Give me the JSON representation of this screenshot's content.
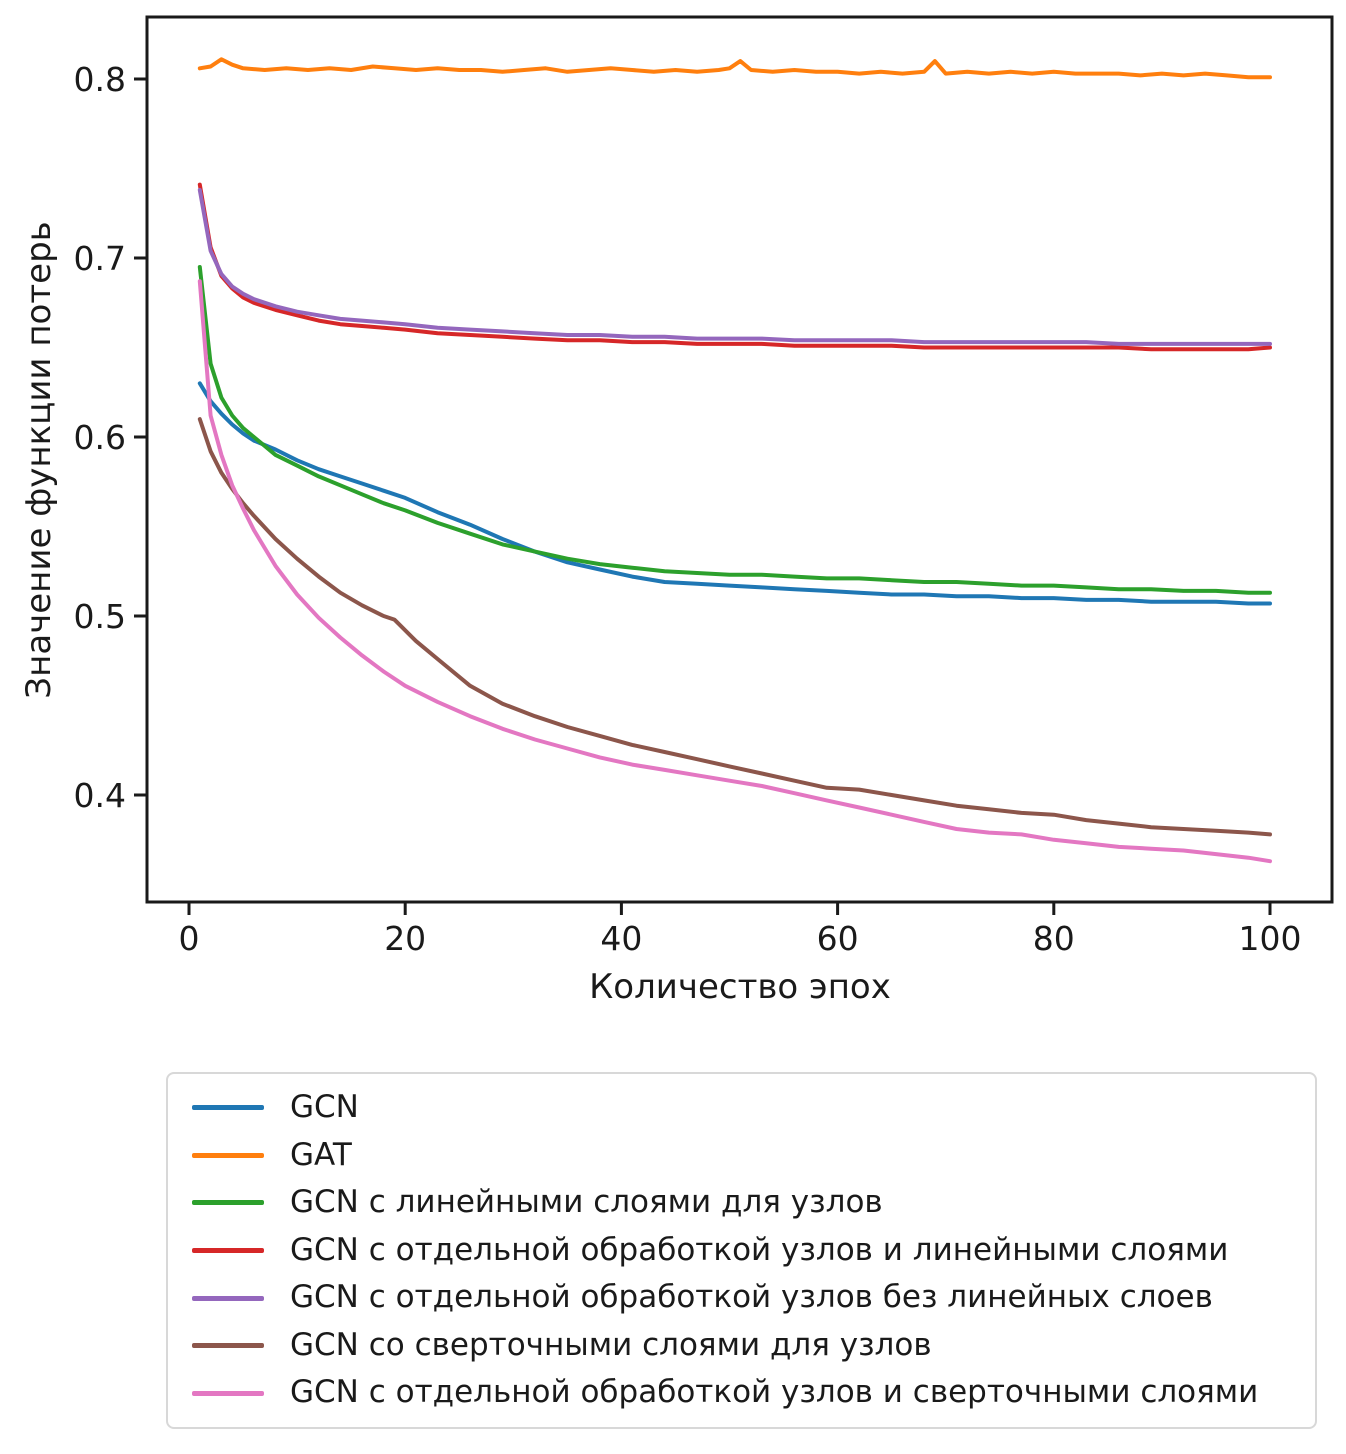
{
  "chart_data": {
    "type": "line",
    "title": "",
    "xlabel": "Количество эпох",
    "ylabel": "Значение функции потерь",
    "x_ticks": [
      "0",
      "20",
      "40",
      "60",
      "80",
      "100"
    ],
    "y_ticks": [
      "0.8",
      "0.7",
      "0.6",
      "0.5",
      "0.4"
    ],
    "xlim": [
      -4,
      106
    ],
    "ylim": [
      0.339,
      0.835
    ],
    "grid": false,
    "legend_position": "below-plot",
    "series": [
      {
        "name": "GCN",
        "color": "#1f77b4",
        "x": [
          1,
          2,
          3,
          4,
          5,
          6,
          8,
          10,
          12,
          14,
          16,
          18,
          20,
          23,
          26,
          29,
          32,
          35,
          38,
          41,
          44,
          47,
          50,
          53,
          56,
          59,
          62,
          65,
          68,
          71,
          74,
          77,
          80,
          83,
          86,
          89,
          92,
          95,
          98,
          100
        ],
        "y": [
          0.63,
          0.62,
          0.613,
          0.607,
          0.602,
          0.598,
          0.593,
          0.587,
          0.582,
          0.578,
          0.574,
          0.57,
          0.566,
          0.558,
          0.551,
          0.543,
          0.536,
          0.53,
          0.526,
          0.522,
          0.519,
          0.518,
          0.517,
          0.516,
          0.515,
          0.514,
          0.513,
          0.512,
          0.512,
          0.511,
          0.511,
          0.51,
          0.51,
          0.509,
          0.509,
          0.508,
          0.508,
          0.508,
          0.507,
          0.507
        ]
      },
      {
        "name": "GAT",
        "color": "#ff7f0e",
        "x": [
          1,
          2,
          3,
          4,
          5,
          7,
          9,
          11,
          13,
          15,
          17,
          19,
          21,
          23,
          25,
          27,
          29,
          31,
          33,
          35,
          37,
          39,
          41,
          43,
          45,
          47,
          49,
          50,
          51,
          52,
          54,
          56,
          58,
          60,
          62,
          64,
          66,
          68,
          69,
          70,
          72,
          74,
          76,
          78,
          80,
          82,
          84,
          86,
          88,
          90,
          92,
          94,
          96,
          98,
          100
        ],
        "y": [
          0.806,
          0.807,
          0.811,
          0.808,
          0.806,
          0.805,
          0.806,
          0.805,
          0.806,
          0.805,
          0.807,
          0.806,
          0.805,
          0.806,
          0.805,
          0.805,
          0.804,
          0.805,
          0.806,
          0.804,
          0.805,
          0.806,
          0.805,
          0.804,
          0.805,
          0.804,
          0.805,
          0.806,
          0.81,
          0.805,
          0.804,
          0.805,
          0.804,
          0.804,
          0.803,
          0.804,
          0.803,
          0.804,
          0.81,
          0.803,
          0.804,
          0.803,
          0.804,
          0.803,
          0.804,
          0.803,
          0.803,
          0.803,
          0.802,
          0.803,
          0.802,
          0.803,
          0.802,
          0.801,
          0.801
        ]
      },
      {
        "name": "GCN с линейными слоями для узлов",
        "color": "#2ca02c",
        "x": [
          1,
          2,
          3,
          4,
          5,
          6,
          8,
          10,
          12,
          14,
          16,
          18,
          20,
          23,
          26,
          29,
          32,
          35,
          38,
          41,
          44,
          47,
          50,
          53,
          56,
          59,
          62,
          65,
          68,
          71,
          74,
          77,
          80,
          83,
          86,
          89,
          92,
          95,
          98,
          100
        ],
        "y": [
          0.695,
          0.641,
          0.622,
          0.612,
          0.605,
          0.6,
          0.59,
          0.584,
          0.578,
          0.573,
          0.568,
          0.563,
          0.559,
          0.552,
          0.546,
          0.54,
          0.536,
          0.532,
          0.529,
          0.527,
          0.525,
          0.524,
          0.523,
          0.523,
          0.522,
          0.521,
          0.521,
          0.52,
          0.519,
          0.519,
          0.518,
          0.517,
          0.517,
          0.516,
          0.515,
          0.515,
          0.514,
          0.514,
          0.513,
          0.513
        ]
      },
      {
        "name": "GCN с отдельной обработкой узлов и линейными слоями",
        "color": "#d62728",
        "x": [
          1,
          2,
          3,
          4,
          5,
          6,
          8,
          10,
          12,
          14,
          16,
          18,
          20,
          23,
          26,
          29,
          32,
          35,
          38,
          41,
          44,
          47,
          50,
          53,
          56,
          59,
          62,
          65,
          68,
          71,
          74,
          77,
          80,
          83,
          86,
          89,
          92,
          95,
          98,
          100
        ],
        "y": [
          0.741,
          0.706,
          0.69,
          0.683,
          0.678,
          0.675,
          0.671,
          0.668,
          0.665,
          0.663,
          0.662,
          0.661,
          0.66,
          0.658,
          0.657,
          0.656,
          0.655,
          0.654,
          0.654,
          0.653,
          0.653,
          0.652,
          0.652,
          0.652,
          0.651,
          0.651,
          0.651,
          0.651,
          0.65,
          0.65,
          0.65,
          0.65,
          0.65,
          0.65,
          0.65,
          0.649,
          0.649,
          0.649,
          0.649,
          0.65
        ]
      },
      {
        "name": "GCN с отдельной обработкой узлов без линейных слоев",
        "color": "#9467bd",
        "x": [
          1,
          2,
          3,
          4,
          5,
          6,
          8,
          10,
          12,
          14,
          16,
          18,
          20,
          23,
          26,
          29,
          32,
          35,
          38,
          41,
          44,
          47,
          50,
          53,
          56,
          59,
          62,
          65,
          68,
          71,
          74,
          77,
          80,
          83,
          86,
          89,
          92,
          95,
          98,
          100
        ],
        "y": [
          0.738,
          0.704,
          0.691,
          0.684,
          0.68,
          0.677,
          0.673,
          0.67,
          0.668,
          0.666,
          0.665,
          0.664,
          0.663,
          0.661,
          0.66,
          0.659,
          0.658,
          0.657,
          0.657,
          0.656,
          0.656,
          0.655,
          0.655,
          0.655,
          0.654,
          0.654,
          0.654,
          0.654,
          0.653,
          0.653,
          0.653,
          0.653,
          0.653,
          0.653,
          0.652,
          0.652,
          0.652,
          0.652,
          0.652,
          0.652
        ]
      },
      {
        "name": "GCN со сверточными слоями для узлов",
        "color": "#8c564b",
        "x": [
          1,
          2,
          3,
          4,
          5,
          6,
          8,
          10,
          12,
          14,
          16,
          18,
          19,
          21,
          23,
          26,
          29,
          32,
          35,
          38,
          41,
          44,
          47,
          50,
          53,
          56,
          59,
          62,
          65,
          68,
          71,
          74,
          77,
          80,
          83,
          86,
          89,
          92,
          95,
          98,
          100
        ],
        "y": [
          0.61,
          0.592,
          0.58,
          0.571,
          0.563,
          0.556,
          0.543,
          0.532,
          0.522,
          0.513,
          0.506,
          0.5,
          0.498,
          0.486,
          0.476,
          0.461,
          0.451,
          0.444,
          0.438,
          0.433,
          0.428,
          0.424,
          0.42,
          0.416,
          0.412,
          0.408,
          0.404,
          0.403,
          0.4,
          0.397,
          0.394,
          0.392,
          0.39,
          0.389,
          0.386,
          0.384,
          0.382,
          0.381,
          0.38,
          0.379,
          0.378
        ]
      },
      {
        "name": "GCN с отдельной обработкой узлов и сверточными слоями",
        "color": "#e377c2",
        "x": [
          1,
          2,
          3,
          4,
          5,
          6,
          8,
          10,
          12,
          14,
          16,
          18,
          20,
          23,
          26,
          29,
          32,
          35,
          38,
          41,
          44,
          47,
          50,
          53,
          56,
          59,
          62,
          65,
          68,
          71,
          74,
          77,
          80,
          83,
          86,
          89,
          92,
          95,
          98,
          100
        ],
        "y": [
          0.687,
          0.612,
          0.59,
          0.573,
          0.56,
          0.548,
          0.528,
          0.512,
          0.499,
          0.488,
          0.478,
          0.469,
          0.461,
          0.452,
          0.444,
          0.437,
          0.431,
          0.426,
          0.421,
          0.417,
          0.414,
          0.411,
          0.408,
          0.405,
          0.401,
          0.397,
          0.393,
          0.389,
          0.385,
          0.381,
          0.379,
          0.378,
          0.375,
          0.373,
          0.371,
          0.37,
          0.369,
          0.367,
          0.365,
          0.363
        ]
      }
    ]
  }
}
